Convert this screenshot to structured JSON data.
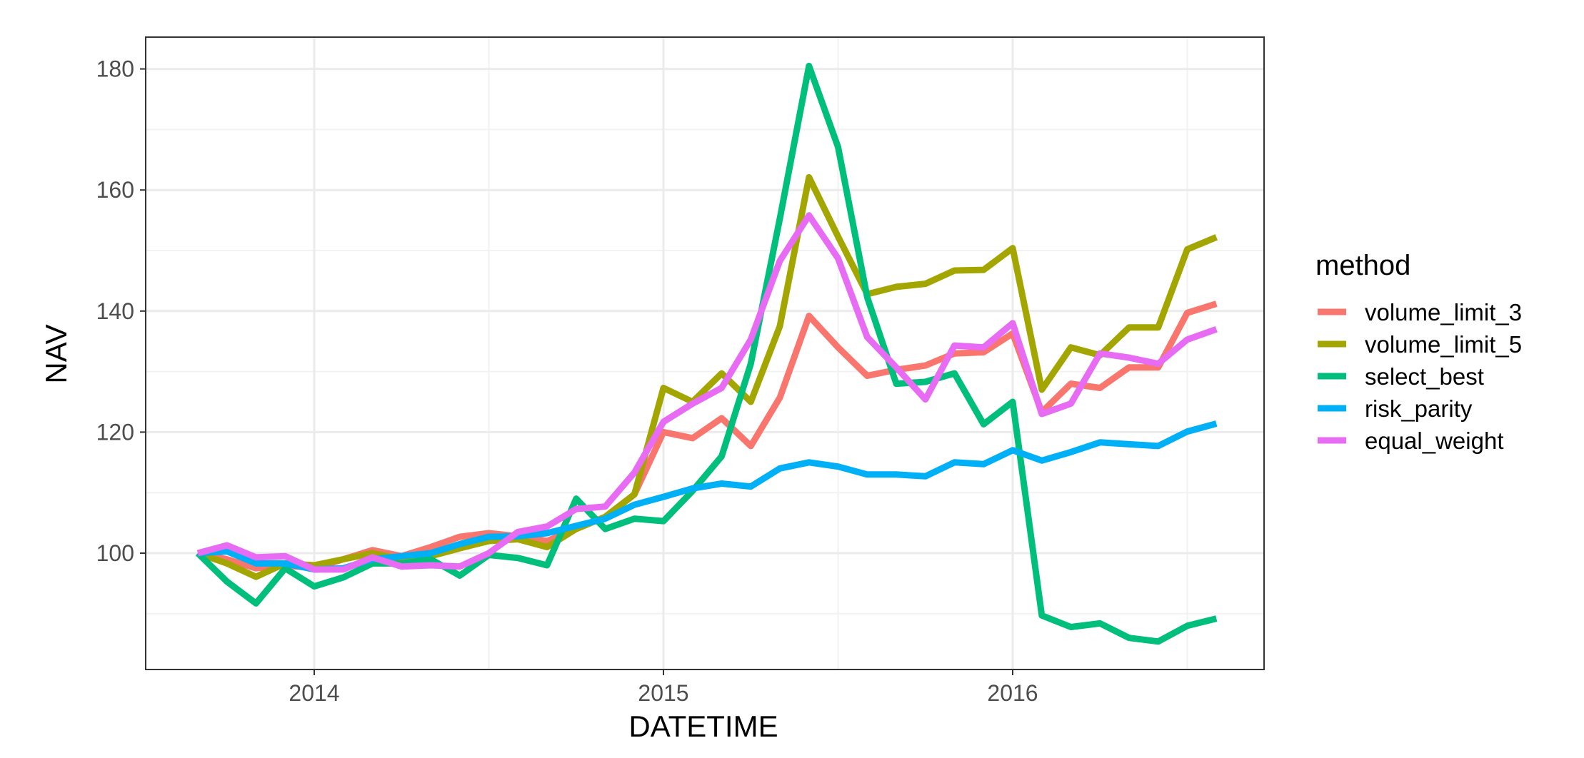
{
  "chart_data": {
    "type": "line",
    "xlabel": "DATETIME",
    "ylabel": "NAV",
    "x_tick_labels": [
      "2014",
      "2015",
      "2016"
    ],
    "y_tick_labels": [
      "100",
      "120",
      "140",
      "160",
      "180"
    ],
    "grid": true,
    "legend_title": "method",
    "legend_position": "right",
    "x": [
      "2013-09",
      "2013-10",
      "2013-11",
      "2013-12",
      "2014-01",
      "2014-02",
      "2014-03",
      "2014-04",
      "2014-05",
      "2014-06",
      "2014-07",
      "2014-08",
      "2014-09",
      "2014-10",
      "2014-11",
      "2014-12",
      "2015-01",
      "2015-02",
      "2015-03",
      "2015-04",
      "2015-05",
      "2015-06",
      "2015-07",
      "2015-08",
      "2015-09",
      "2015-10",
      "2015-11",
      "2015-12",
      "2016-01",
      "2016-02",
      "2016-03",
      "2016-04",
      "2016-05",
      "2016-06",
      "2016-07",
      "2016-08"
    ],
    "series": [
      {
        "name": "volume_limit_3",
        "color": "#F8766D",
        "values": [
          100,
          99,
          97.5,
          98,
          97.5,
          99,
          100.5,
          99.5,
          101,
          102.7,
          103.3,
          102.8,
          102,
          104,
          106,
          109.7,
          120,
          119,
          122.3,
          117.7,
          125.7,
          139.2,
          134,
          129.3,
          130.3,
          131,
          133,
          133.2,
          136.3,
          123.3,
          128,
          127.3,
          130.7,
          130.7,
          139.7,
          141.2
        ]
      },
      {
        "name": "volume_limit_5",
        "color": "#A3A500",
        "values": [
          100,
          98.3,
          96.1,
          98.3,
          98,
          99,
          100,
          99,
          99.5,
          100.8,
          102,
          102.3,
          101,
          104,
          106,
          109.7,
          127.3,
          125,
          129.7,
          125,
          137.5,
          162.1,
          152.3,
          142.8,
          144,
          144.5,
          146.7,
          146.8,
          150.4,
          127,
          134,
          132.7,
          137.3,
          137.3,
          150.2,
          152.2
        ]
      },
      {
        "name": "select_best",
        "color": "#00BF7D",
        "values": [
          100,
          95.3,
          91.7,
          97.5,
          94.5,
          96,
          98.3,
          98.3,
          99,
          96.3,
          99.7,
          99.2,
          98,
          109,
          104,
          105.7,
          105.3,
          110.3,
          116,
          131.3,
          155.3,
          180.5,
          167.1,
          142.3,
          128,
          128.3,
          129.7,
          121.3,
          125,
          89.7,
          87.8,
          88.4,
          86,
          85.4,
          88,
          89.2
        ]
      },
      {
        "name": "risk_parity",
        "color": "#00B0F6",
        "values": [
          100,
          100.3,
          98.3,
          98.3,
          97.3,
          97.5,
          99,
          99.5,
          100,
          101.5,
          102.7,
          102.8,
          103.3,
          104.5,
          105.7,
          108,
          109.3,
          110.7,
          111.5,
          111,
          114,
          115,
          114.3,
          113,
          113,
          112.7,
          115,
          114.7,
          117,
          115.3,
          116.7,
          118.3,
          118,
          117.7,
          120.1,
          121.4
        ]
      },
      {
        "name": "equal_weight",
        "color": "#E76BF3",
        "values": [
          100,
          101.3,
          99.3,
          99.5,
          97.3,
          97.3,
          99.3,
          97.8,
          98,
          97.8,
          100,
          103.5,
          104.4,
          107.3,
          107.7,
          113.3,
          121.7,
          124.7,
          127.3,
          135.3,
          148.3,
          155.8,
          148.7,
          135.7,
          130.7,
          125.4,
          134.3,
          134,
          138,
          123,
          124.7,
          133,
          132.3,
          131.3,
          135.3,
          137
        ]
      }
    ]
  }
}
